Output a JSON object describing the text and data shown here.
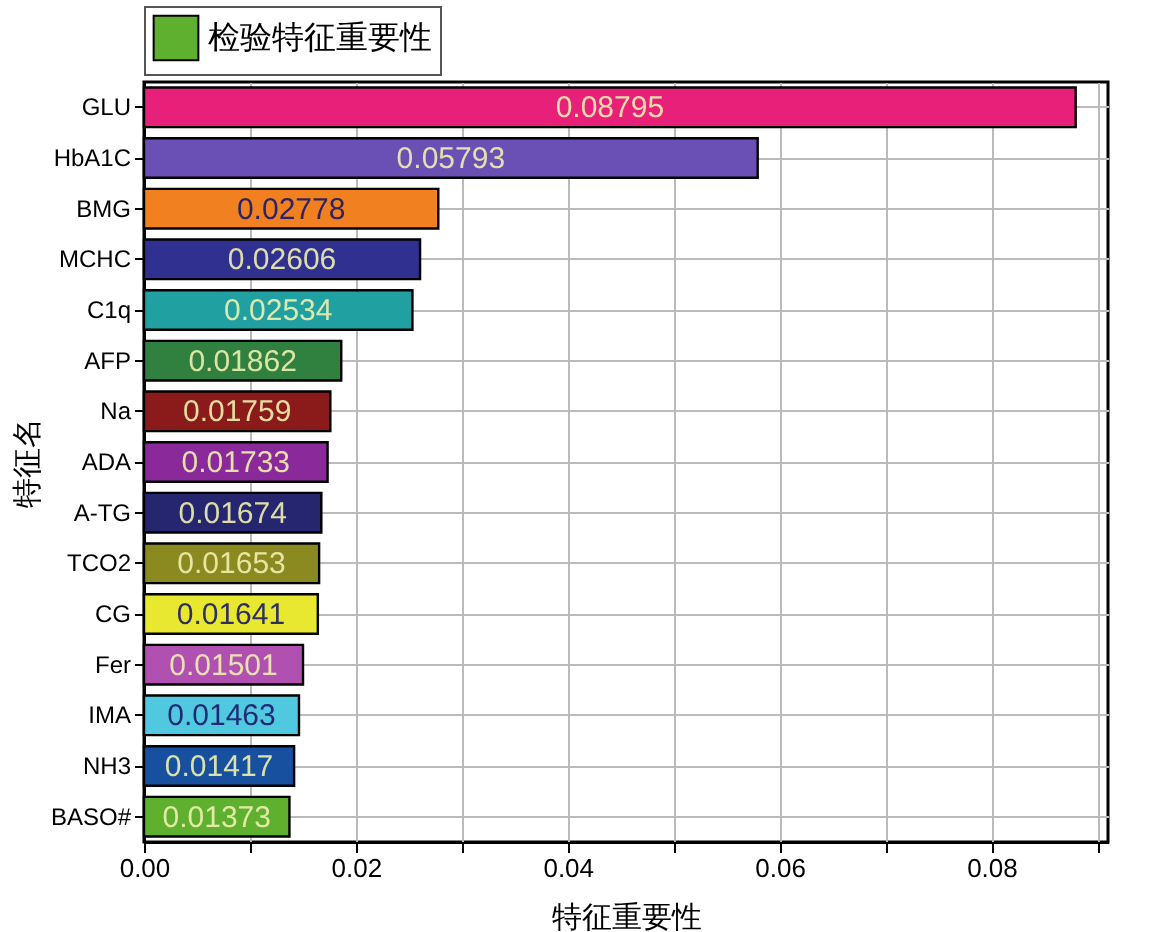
{
  "chart_data": {
    "type": "bar",
    "orientation": "horizontal",
    "xlabel": "特征重要性",
    "ylabel": "特征名",
    "categories": [
      "GLU",
      "HbA1C",
      "BMG",
      "MCHC",
      "C1q",
      "AFP",
      "Na",
      "ADA",
      "A-TG",
      "TCO2",
      "CG",
      "Fer",
      "IMA",
      "NH3",
      "BASO#"
    ],
    "series": [
      {
        "name": "检验特征重要性",
        "color": "#60b030",
        "colors": [
          "#e8207a",
          "#6a4fb5",
          "#f08020",
          "#303090",
          "#20a0a0",
          "#308040",
          "#8b1a1a",
          "#8a2a9a",
          "#252570",
          "#8a8a20",
          "#e8e830",
          "#b050b0",
          "#50c8e0",
          "#1850a0",
          "#60b030"
        ],
        "values": [
          0.08795,
          0.05793,
          0.02778,
          0.02606,
          0.02534,
          0.01862,
          0.01759,
          0.01733,
          0.01674,
          0.01653,
          0.01641,
          0.01501,
          0.01463,
          0.01417,
          0.01373
        ]
      }
    ],
    "xlim": [
      0,
      0.091
    ],
    "xticks": [
      {
        "value": 0,
        "label": "0.00"
      },
      {
        "value": 0.01,
        "label": null
      },
      {
        "value": 0.02,
        "label": "0.02"
      },
      {
        "value": 0.03,
        "label": null
      },
      {
        "value": 0.04,
        "label": "0.04"
      },
      {
        "value": 0.05,
        "label": null
      },
      {
        "value": 0.06,
        "label": "0.06"
      },
      {
        "value": 0.07,
        "label": null
      },
      {
        "value": 0.08,
        "label": "0.08"
      },
      {
        "value": 0.09,
        "label": null
      }
    ],
    "grid": true,
    "legend": "top",
    "data_labels": true
  }
}
